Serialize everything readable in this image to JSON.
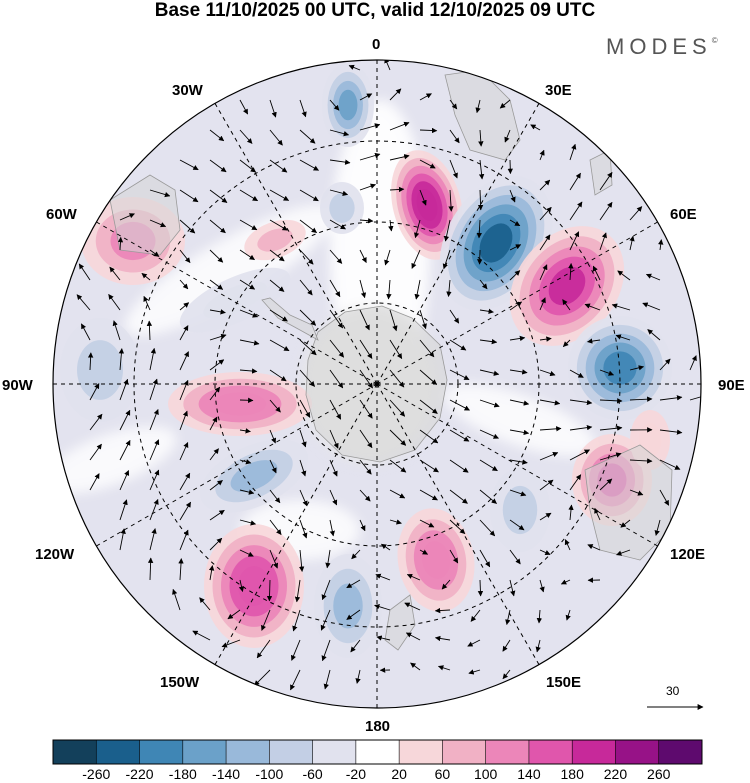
{
  "title": "Base 11/10/2025 00 UTC, valid 12/10/2025 09 UTC",
  "brand": "MODES",
  "brand_mark": "©",
  "longitude_labels": {
    "lon_0": "0",
    "lon_30e": "30E",
    "lon_60e": "60E",
    "lon_90e": "90E",
    "lon_120e": "120E",
    "lon_150e": "150E",
    "lon_180": "180",
    "lon_150w": "150W",
    "lon_120w": "120W",
    "lon_90w": "90W",
    "lon_60w": "60W",
    "lon_30w": "30W"
  },
  "reference_vector": {
    "value": "30"
  },
  "colorbar": {
    "labels": [
      "-260",
      "-220",
      "-180",
      "-140",
      "-100",
      "-60",
      "-20",
      "20",
      "60",
      "100",
      "140",
      "180",
      "220",
      "260"
    ],
    "colors": [
      "#13405b",
      "#1a5f8c",
      "#3f86b5",
      "#6ba1c9",
      "#99b9da",
      "#c3cfe5",
      "#e1e2ee",
      "#ffffff",
      "#f7d7da",
      "#f1b1c5",
      "#ec86b9",
      "#e056ac",
      "#c7299a",
      "#971287",
      "#5e0a6e"
    ]
  },
  "anomaly_centers": [
    {
      "id": "c1",
      "value": -140
    },
    {
      "id": "c2",
      "value": -80
    },
    {
      "id": "c3",
      "value": 220
    },
    {
      "id": "c4",
      "value": -240
    },
    {
      "id": "c5",
      "value": 200
    },
    {
      "id": "c6",
      "value": -200
    },
    {
      "id": "c7",
      "value": 150
    },
    {
      "id": "c8",
      "value": -80
    },
    {
      "id": "c9",
      "value": 130
    },
    {
      "id": "c10",
      "value": -120
    },
    {
      "id": "c11",
      "value": 170
    },
    {
      "id": "c12",
      "value": -100
    },
    {
      "id": "c13",
      "value": 140
    },
    {
      "id": "c14",
      "value": -80
    },
    {
      "id": "c15",
      "value": 120
    },
    {
      "id": "c16",
      "value": 70
    },
    {
      "id": "c17",
      "value": -50
    },
    {
      "id": "c18",
      "value": 60
    }
  ]
}
